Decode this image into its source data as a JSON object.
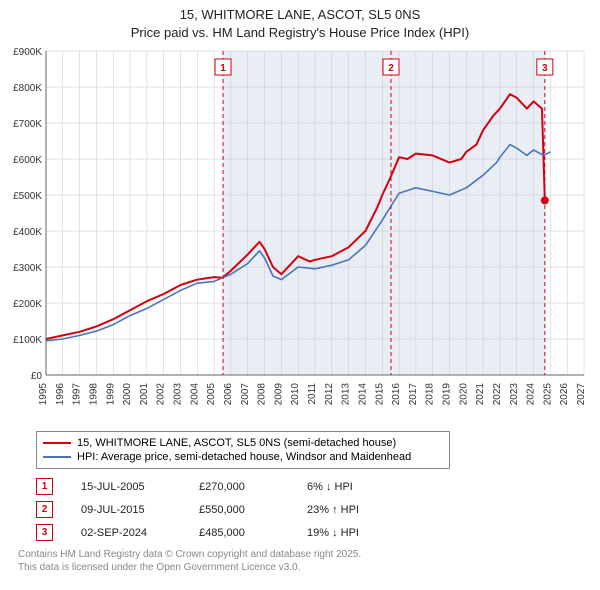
{
  "title_line1": "15, WHITMORE LANE, ASCOT, SL5 0NS",
  "title_line2": "Price paid vs. HM Land Registry's House Price Index (HPI)",
  "chart": {
    "type": "line",
    "background_color": "#ffffff",
    "plot_background_color": "#ffffff",
    "shaded_band_color": "#e9eef5",
    "grid_color": "#c8c8c8",
    "axis_text_color": "#333333",
    "x_years": [
      1995,
      1996,
      1997,
      1998,
      1999,
      2000,
      2001,
      2002,
      2003,
      2004,
      2005,
      2006,
      2007,
      2008,
      2009,
      2010,
      2011,
      2012,
      2013,
      2014,
      2015,
      2016,
      2017,
      2018,
      2019,
      2020,
      2021,
      2022,
      2023,
      2024,
      2025,
      2026,
      2027
    ],
    "y_ticks": [
      0,
      100,
      200,
      300,
      400,
      500,
      600,
      700,
      800,
      900
    ],
    "y_tick_labels": [
      "£0",
      "£100K",
      "£200K",
      "£300K",
      "£400K",
      "£500K",
      "£600K",
      "£700K",
      "£800K",
      "£900K"
    ],
    "ylim": [
      0,
      900
    ],
    "xlim": [
      1995,
      2027
    ],
    "shaded_band": {
      "x_start": 2005.5,
      "x_end": 2024.67
    },
    "series": [
      {
        "name": "address_line",
        "color": "#d4000f",
        "width": 2,
        "points": [
          [
            1995,
            100
          ],
          [
            1996,
            110
          ],
          [
            1997,
            120
          ],
          [
            1998,
            135
          ],
          [
            1999,
            155
          ],
          [
            2000,
            180
          ],
          [
            2001,
            205
          ],
          [
            2002,
            225
          ],
          [
            2003,
            250
          ],
          [
            2004,
            265
          ],
          [
            2005,
            272
          ],
          [
            2005.5,
            270
          ],
          [
            2006,
            290
          ],
          [
            2007,
            335
          ],
          [
            2007.7,
            370
          ],
          [
            2008,
            350
          ],
          [
            2008.5,
            300
          ],
          [
            2009,
            280
          ],
          [
            2009.6,
            310
          ],
          [
            2010,
            330
          ],
          [
            2010.7,
            315
          ],
          [
            2011,
            320
          ],
          [
            2012,
            330
          ],
          [
            2013,
            355
          ],
          [
            2014,
            400
          ],
          [
            2014.7,
            465
          ],
          [
            2015,
            500
          ],
          [
            2015.5,
            550
          ],
          [
            2016,
            605
          ],
          [
            2016.5,
            600
          ],
          [
            2017,
            615
          ],
          [
            2018,
            610
          ],
          [
            2019,
            590
          ],
          [
            2019.7,
            600
          ],
          [
            2020,
            620
          ],
          [
            2020.6,
            640
          ],
          [
            2021,
            680
          ],
          [
            2021.6,
            720
          ],
          [
            2022,
            740
          ],
          [
            2022.6,
            780
          ],
          [
            2023,
            770
          ],
          [
            2023.6,
            740
          ],
          [
            2024,
            760
          ],
          [
            2024.5,
            740
          ],
          [
            2024.67,
            485
          ]
        ]
      },
      {
        "name": "hpi_line",
        "color": "#4a74b8",
        "width": 1.6,
        "points": [
          [
            1995,
            95
          ],
          [
            1996,
            100
          ],
          [
            1997,
            110
          ],
          [
            1998,
            122
          ],
          [
            1999,
            140
          ],
          [
            2000,
            165
          ],
          [
            2001,
            185
          ],
          [
            2002,
            210
          ],
          [
            2003,
            235
          ],
          [
            2004,
            255
          ],
          [
            2005,
            260
          ],
          [
            2006,
            280
          ],
          [
            2007,
            310
          ],
          [
            2007.7,
            345
          ],
          [
            2008,
            325
          ],
          [
            2008.5,
            275
          ],
          [
            2009,
            265
          ],
          [
            2010,
            300
          ],
          [
            2011,
            295
          ],
          [
            2012,
            305
          ],
          [
            2013,
            320
          ],
          [
            2014,
            360
          ],
          [
            2015,
            430
          ],
          [
            2015.6,
            475
          ],
          [
            2016,
            505
          ],
          [
            2017,
            520
          ],
          [
            2018,
            510
          ],
          [
            2019,
            500
          ],
          [
            2020,
            520
          ],
          [
            2021,
            555
          ],
          [
            2021.8,
            590
          ],
          [
            2022,
            605
          ],
          [
            2022.6,
            640
          ],
          [
            2023,
            630
          ],
          [
            2023.6,
            610
          ],
          [
            2024,
            625
          ],
          [
            2024.6,
            610
          ],
          [
            2025,
            620
          ]
        ]
      }
    ],
    "marker_lines": [
      {
        "x": 2005.53,
        "label": "1",
        "color": "#d4000f"
      },
      {
        "x": 2015.52,
        "label": "2",
        "color": "#d4000f"
      },
      {
        "x": 2024.67,
        "label": "3",
        "color": "#d4000f"
      }
    ]
  },
  "legend": {
    "items": [
      {
        "color": "#d4000f",
        "label": "15, WHITMORE LANE, ASCOT, SL5 0NS (semi-detached house)"
      },
      {
        "color": "#4a74b8",
        "label": "HPI: Average price, semi-detached house, Windsor and Maidenhead"
      }
    ]
  },
  "markers_table": [
    {
      "n": "1",
      "color": "#d4000f",
      "date": "15-JUL-2005",
      "price": "£270,000",
      "delta": "6% ↓ HPI"
    },
    {
      "n": "2",
      "color": "#d4000f",
      "date": "09-JUL-2015",
      "price": "£550,000",
      "delta": "23% ↑ HPI"
    },
    {
      "n": "3",
      "color": "#d4000f",
      "date": "02-SEP-2024",
      "price": "£485,000",
      "delta": "19% ↓ HPI"
    }
  ],
  "footnote_line1": "Contains HM Land Registry data © Crown copyright and database right 2025.",
  "footnote_line2": "This data is licensed under the Open Government Licence v3.0."
}
